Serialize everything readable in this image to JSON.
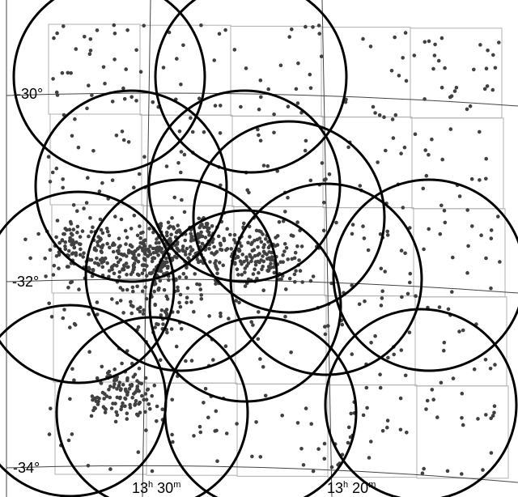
{
  "map": {
    "dec_labels": [
      "-30°",
      "-32°",
      "-34°"
    ],
    "ra_labels": [
      {
        "h": "13",
        "m": "30"
      },
      {
        "h": "13",
        "m": "20"
      }
    ],
    "colors": {
      "circle": "#000000",
      "field": "#b0b0b0",
      "grid": "#444444",
      "point": "#404040"
    }
  }
}
